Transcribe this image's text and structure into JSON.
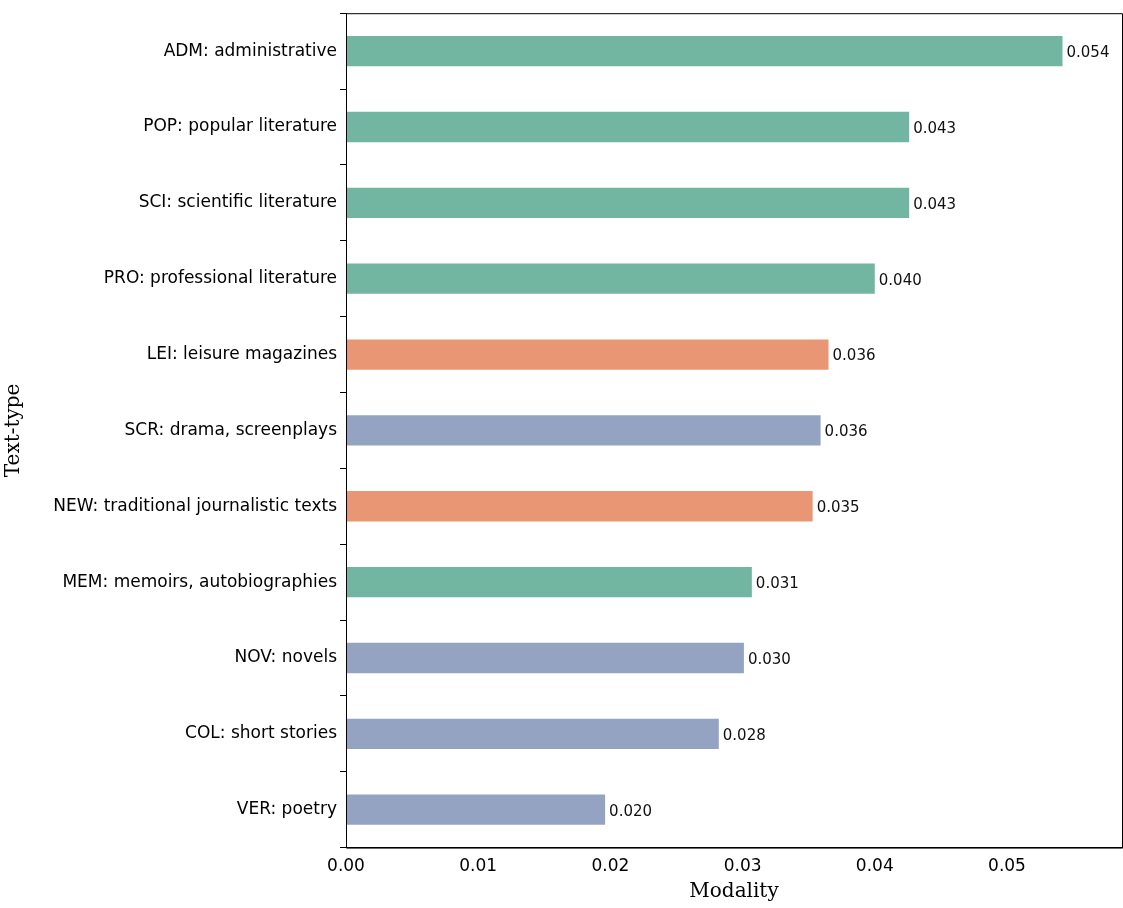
{
  "chart_data": {
    "type": "bar",
    "orientation": "horizontal",
    "xlabel": "Modality",
    "ylabel": "Text-type",
    "categories": [
      "ADM: administrative",
      "POP: popular literature",
      "SCI: scientific literature",
      "PRO: professional literature",
      "LEI: leisure magazines",
      "SCR: drama, screenplays",
      "NEW: traditional journalistic texts",
      "MEM: memoirs, autobiographies",
      "NOV: novels",
      "COL: short stories",
      "VER: poetry"
    ],
    "values": [
      0.0542,
      0.0426,
      0.0426,
      0.04,
      0.0365,
      0.0359,
      0.0353,
      0.0307,
      0.0301,
      0.0282,
      0.0196
    ],
    "value_labels": [
      "0.054",
      "0.043",
      "0.043",
      "0.040",
      "0.036",
      "0.036",
      "0.035",
      "0.031",
      "0.030",
      "0.028",
      "0.020"
    ],
    "colors": [
      "#72b6a1",
      "#72b6a1",
      "#72b6a1",
      "#72b6a1",
      "#e99675",
      "#95a3c3",
      "#e99675",
      "#72b6a1",
      "#95a3c3",
      "#95a3c3",
      "#95a3c3"
    ],
    "xlim": [
      0,
      0.0587
    ],
    "xticks": [
      {
        "value": 0,
        "label": "0.00"
      },
      {
        "value": 0.01,
        "label": "0.01"
      },
      {
        "value": 0.02,
        "label": "0.02"
      },
      {
        "value": 0.03,
        "label": "0.03"
      },
      {
        "value": 0.04,
        "label": "0.04"
      },
      {
        "value": 0.05,
        "label": "0.05"
      }
    ],
    "grid": false,
    "legend": false
  }
}
